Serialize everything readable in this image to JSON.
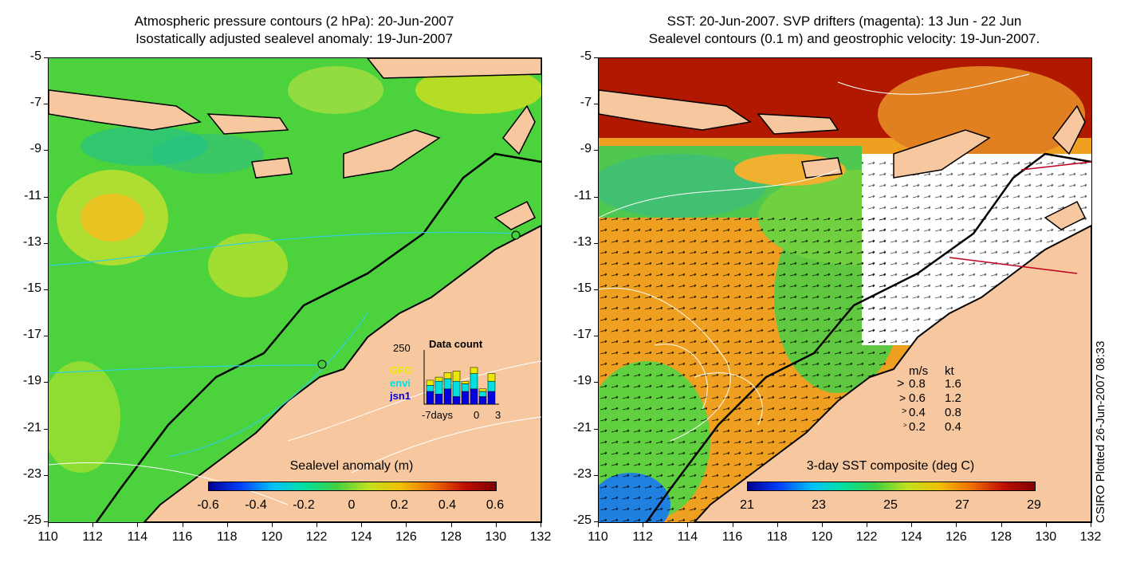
{
  "left_panel": {
    "title_line1": "Atmospheric pressure contours (2 hPa): 20-Jun-2007",
    "title_line2": "Isostatically adjusted sealevel anomaly: 19-Jun-2007",
    "colorbar": {
      "label": "Sealevel anomaly (m)",
      "ticks": [
        "-0.6",
        "-0.4",
        "-0.2",
        "0",
        "0.2",
        "0.4",
        "0.6"
      ]
    },
    "inset": {
      "ytick": "250",
      "title": "Data count",
      "series": [
        {
          "name": "GFO",
          "color": "#e8e800"
        },
        {
          "name": "envi",
          "color": "#00e0e0"
        },
        {
          "name": "jsn1",
          "color": "#0000e0"
        }
      ],
      "xlabels": [
        "-7days",
        "0",
        "3"
      ],
      "bars": [
        {
          "jsn1": 0.25,
          "envi": 0.12,
          "GFO": 0.1
        },
        {
          "jsn1": 0.2,
          "envi": 0.25,
          "GFO": 0.08
        },
        {
          "jsn1": 0.3,
          "envi": 0.2,
          "GFO": 0.12
        },
        {
          "jsn1": 0.15,
          "envi": 0.3,
          "GFO": 0.2
        },
        {
          "jsn1": 0.25,
          "envi": 0.15,
          "GFO": 0.05
        },
        {
          "jsn1": 0.3,
          "envi": 0.3,
          "GFO": 0.12
        },
        {
          "jsn1": 0.15,
          "envi": 0.1,
          "GFO": 0.05
        },
        {
          "jsn1": 0.25,
          "envi": 0.2,
          "GFO": 0.15
        }
      ]
    }
  },
  "right_panel": {
    "title_line1": "SST: 20-Jun-2007. SVP drifters (magenta): 13 Jun - 22 Jun",
    "title_line2": "Sealevel contours (0.1 m) and geostrophic velocity: 19-Jun-2007.",
    "colorbar": {
      "label": "3-day SST composite (deg C)",
      "ticks": [
        "21",
        "23",
        "25",
        "27",
        "29"
      ]
    },
    "velocity_legend": {
      "header_ms": "m/s",
      "header_kt": "kt",
      "rows": [
        {
          "ms": "0.8",
          "kt": "1.6"
        },
        {
          "ms": "0.6",
          "kt": "1.2"
        },
        {
          "ms": "0.4",
          "kt": "0.8"
        },
        {
          "ms": "0.2",
          "kt": "0.4"
        }
      ]
    }
  },
  "axes": {
    "lat_ticks": [
      "-5",
      "-7",
      "-9",
      "-11",
      "-13",
      "-15",
      "-17",
      "-19",
      "-21",
      "-23",
      "-25"
    ],
    "lon_ticks": [
      "110",
      "112",
      "114",
      "116",
      "118",
      "120",
      "122",
      "124",
      "126",
      "128",
      "130",
      "132"
    ]
  },
  "credit": "CSIRO Plotted 26-Jun-2007 08:33",
  "colors": {
    "land": "#f7c8a0",
    "ocean_green": "#40d040",
    "sst_orange": "#f0a020",
    "sst_red": "#a01000"
  }
}
